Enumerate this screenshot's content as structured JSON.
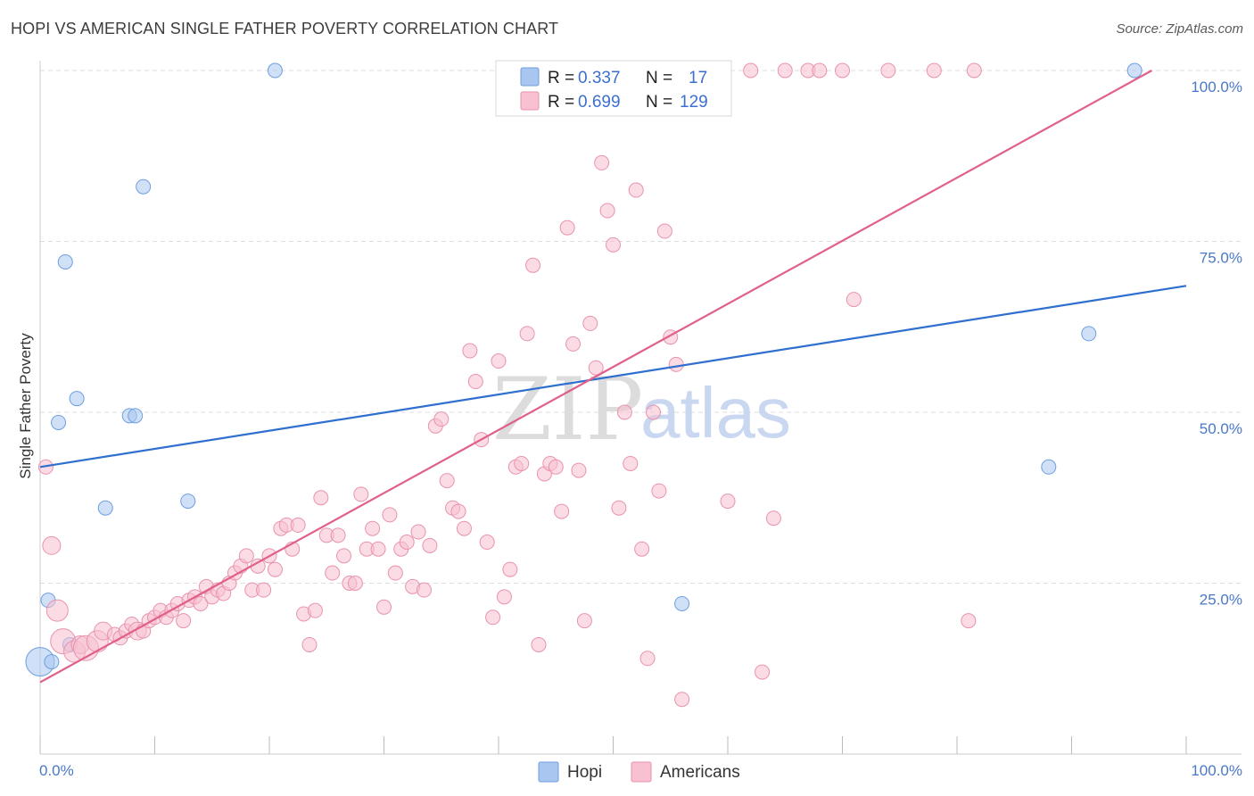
{
  "title": "HOPI VS AMERICAN SINGLE FATHER POVERTY CORRELATION CHART",
  "source": "Source: ZipAtlas.com",
  "watermark": {
    "left": "ZIP",
    "right": "atlas"
  },
  "legend_top": [
    {
      "r_label": "R =",
      "r_value": "0.337",
      "n_label": "N =",
      "n_value": "17",
      "color": "#a8c6f0",
      "stroke": "#6f9fdf"
    },
    {
      "r_label": "R =",
      "r_value": "0.699",
      "n_label": "N =",
      "n_value": "129",
      "color": "#f8c0d0",
      "stroke": "#e893ad"
    }
  ],
  "legend_bottom": [
    {
      "label": "Hopi",
      "color": "#a8c6f0",
      "stroke": "#6f9fdf"
    },
    {
      "label": "Americans",
      "color": "#f8c0d0",
      "stroke": "#e893ad"
    }
  ],
  "chart_data": {
    "type": "scatter",
    "xlabel": "",
    "ylabel": "Single Father Poverty",
    "xlim": [
      0,
      100
    ],
    "ylim": [
      0,
      100
    ],
    "x_ticks": [
      "0.0%",
      "100.0%"
    ],
    "y_ticks": [
      "25.0%",
      "50.0%",
      "75.0%",
      "100.0%"
    ],
    "grid": true,
    "series": [
      {
        "name": "Hopi",
        "color": "#6f9fdf",
        "fill": "#a8c6f0",
        "line_color": "#2f6fcf",
        "trend": [
          [
            0,
            42.0
          ],
          [
            100,
            68.5
          ]
        ],
        "points": [
          [
            0.0,
            13.5,
            16
          ],
          [
            1.0,
            13.5,
            8
          ],
          [
            0.7,
            22.5,
            8
          ],
          [
            1.6,
            48.5,
            8
          ],
          [
            2.2,
            72.0,
            8
          ],
          [
            3.2,
            52.0,
            8
          ],
          [
            5.7,
            36.0,
            8
          ],
          [
            7.8,
            49.5,
            8
          ],
          [
            8.3,
            49.5,
            8
          ],
          [
            9.0,
            83.0,
            8
          ],
          [
            12.9,
            37.0,
            8
          ],
          [
            20.5,
            100.0,
            8
          ],
          [
            56.0,
            22.0,
            8
          ],
          [
            88.0,
            42.0,
            8
          ],
          [
            91.5,
            61.5,
            8
          ],
          [
            95.5,
            100.0,
            8
          ],
          [
            2.6,
            16.0,
            8
          ]
        ]
      },
      {
        "name": "Americans",
        "color": "#e893ad",
        "fill": "#f8c0d0",
        "line_color": "#e0608a",
        "trend": [
          [
            0,
            10.5
          ],
          [
            97,
            100.0
          ]
        ],
        "points": [
          [
            0.5,
            42.0,
            8
          ],
          [
            1.0,
            30.5,
            10
          ],
          [
            1.5,
            21.0,
            12
          ],
          [
            2.0,
            16.5,
            14
          ],
          [
            3.0,
            15.0,
            12
          ],
          [
            3.5,
            16.0,
            10
          ],
          [
            4.0,
            15.5,
            14
          ],
          [
            5.0,
            16.5,
            12
          ],
          [
            5.5,
            18.0,
            10
          ],
          [
            6.5,
            17.5,
            8
          ],
          [
            7.0,
            17.0,
            8
          ],
          [
            7.5,
            18.0,
            8
          ],
          [
            8.0,
            19.0,
            8
          ],
          [
            8.5,
            18.0,
            10
          ],
          [
            9.0,
            18.0,
            8
          ],
          [
            9.5,
            19.5,
            8
          ],
          [
            10.0,
            20.0,
            8
          ],
          [
            10.5,
            21.0,
            8
          ],
          [
            11.0,
            20.0,
            8
          ],
          [
            11.5,
            21.0,
            8
          ],
          [
            12.0,
            22.0,
            8
          ],
          [
            12.5,
            19.5,
            8
          ],
          [
            13.0,
            22.5,
            8
          ],
          [
            13.5,
            23.0,
            8
          ],
          [
            14.0,
            22.0,
            8
          ],
          [
            14.5,
            24.5,
            8
          ],
          [
            15.0,
            23.0,
            8
          ],
          [
            15.5,
            24.0,
            8
          ],
          [
            16.0,
            23.5,
            8
          ],
          [
            16.5,
            25.0,
            8
          ],
          [
            17.0,
            26.5,
            8
          ],
          [
            17.5,
            27.5,
            8
          ],
          [
            18.0,
            29.0,
            8
          ],
          [
            18.5,
            24.0,
            8
          ],
          [
            19.0,
            27.5,
            8
          ],
          [
            19.5,
            24.0,
            8
          ],
          [
            20.0,
            29.0,
            8
          ],
          [
            20.5,
            27.0,
            8
          ],
          [
            21.0,
            33.0,
            8
          ],
          [
            21.5,
            33.5,
            8
          ],
          [
            22.0,
            30.0,
            8
          ],
          [
            22.5,
            33.5,
            8
          ],
          [
            23.0,
            20.5,
            8
          ],
          [
            23.5,
            16.0,
            8
          ],
          [
            24.0,
            21.0,
            8
          ],
          [
            24.5,
            37.5,
            8
          ],
          [
            25.0,
            32.0,
            8
          ],
          [
            25.5,
            26.5,
            8
          ],
          [
            26.0,
            32.0,
            8
          ],
          [
            26.5,
            29.0,
            8
          ],
          [
            27.0,
            25.0,
            8
          ],
          [
            27.5,
            25.0,
            8
          ],
          [
            28.0,
            38.0,
            8
          ],
          [
            28.5,
            30.0,
            8
          ],
          [
            29.0,
            33.0,
            8
          ],
          [
            29.5,
            30.0,
            8
          ],
          [
            30.0,
            21.5,
            8
          ],
          [
            30.5,
            35.0,
            8
          ],
          [
            31.0,
            26.5,
            8
          ],
          [
            31.5,
            30.0,
            8
          ],
          [
            32.0,
            31.0,
            8
          ],
          [
            32.5,
            24.5,
            8
          ],
          [
            33.0,
            32.5,
            8
          ],
          [
            33.5,
            24.0,
            8
          ],
          [
            34.0,
            30.5,
            8
          ],
          [
            34.5,
            48.0,
            8
          ],
          [
            35.0,
            49.0,
            8
          ],
          [
            35.5,
            40.0,
            8
          ],
          [
            36.0,
            36.0,
            8
          ],
          [
            36.5,
            35.5,
            8
          ],
          [
            37.0,
            33.0,
            8
          ],
          [
            37.5,
            59.0,
            8
          ],
          [
            38.0,
            54.5,
            8
          ],
          [
            38.5,
            46.0,
            8
          ],
          [
            39.0,
            31.0,
            8
          ],
          [
            39.5,
            20.0,
            8
          ],
          [
            40.0,
            57.5,
            8
          ],
          [
            40.5,
            23.0,
            8
          ],
          [
            41.0,
            27.0,
            8
          ],
          [
            41.5,
            42.0,
            8
          ],
          [
            42.0,
            42.5,
            8
          ],
          [
            42.5,
            61.5,
            8
          ],
          [
            43.0,
            71.5,
            8
          ],
          [
            43.5,
            16.0,
            8
          ],
          [
            44.0,
            41.0,
            8
          ],
          [
            44.5,
            42.5,
            8
          ],
          [
            45.0,
            42.0,
            8
          ],
          [
            45.5,
            35.5,
            8
          ],
          [
            46.0,
            77.0,
            8
          ],
          [
            46.5,
            60.0,
            8
          ],
          [
            47.0,
            41.5,
            8
          ],
          [
            47.5,
            19.5,
            8
          ],
          [
            48.0,
            63.0,
            8
          ],
          [
            48.5,
            56.5,
            8
          ],
          [
            49.0,
            86.5,
            8
          ],
          [
            49.5,
            79.5,
            8
          ],
          [
            50.0,
            74.5,
            8
          ],
          [
            50.5,
            36.0,
            8
          ],
          [
            51.0,
            50.0,
            8
          ],
          [
            51.5,
            42.5,
            8
          ],
          [
            52.0,
            82.5,
            8
          ],
          [
            52.5,
            30.0,
            8
          ],
          [
            53.0,
            14.0,
            8
          ],
          [
            53.5,
            50.0,
            8
          ],
          [
            54.0,
            38.5,
            8
          ],
          [
            54.5,
            76.5,
            8
          ],
          [
            55.0,
            61.0,
            8
          ],
          [
            55.5,
            57.0,
            8
          ],
          [
            56.0,
            8.0,
            8
          ],
          [
            57.0,
            100.0,
            8
          ],
          [
            58.0,
            100.0,
            8
          ],
          [
            59.0,
            100.0,
            8
          ],
          [
            60.0,
            37.0,
            8
          ],
          [
            62.0,
            100.0,
            8
          ],
          [
            63.0,
            12.0,
            8
          ],
          [
            64.0,
            34.5,
            8
          ],
          [
            65.0,
            100.0,
            8
          ],
          [
            67.0,
            100.0,
            8
          ],
          [
            70.0,
            100.0,
            8
          ],
          [
            71.0,
            66.5,
            8
          ],
          [
            74.0,
            100.0,
            8
          ],
          [
            81.0,
            19.5,
            8
          ],
          [
            81.5,
            100.0,
            8
          ],
          [
            52.0,
            100.0,
            8
          ],
          [
            50.0,
            100.0,
            8
          ],
          [
            48.0,
            100.0,
            8
          ],
          [
            46.0,
            100.0,
            8
          ],
          [
            68.0,
            100.0,
            8
          ],
          [
            78.0,
            100.0,
            8
          ]
        ]
      }
    ]
  }
}
